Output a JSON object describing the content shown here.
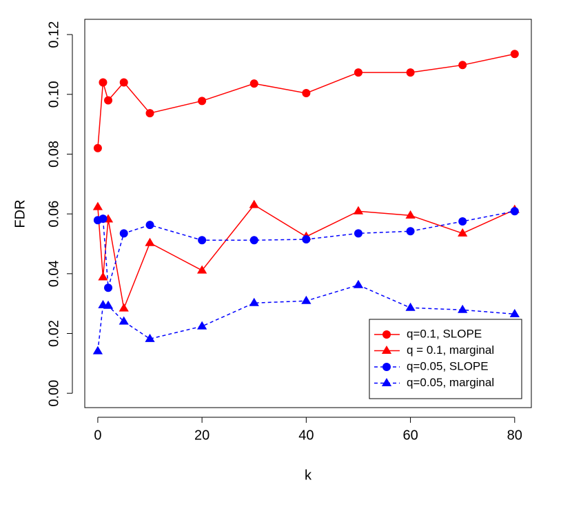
{
  "chart_data": {
    "type": "line",
    "x_label": "k",
    "y_label": "FDR",
    "x": [
      0,
      1,
      2,
      5,
      10,
      20,
      30,
      40,
      50,
      60,
      70,
      80
    ],
    "series": [
      {
        "name": "q=0.1, SLOPE",
        "color": "#ff0000",
        "marker": "circle",
        "dashed": false,
        "values": [
          0.082,
          0.104,
          0.098,
          0.104,
          0.0937,
          0.0978,
          0.1036,
          0.1004,
          0.1073,
          0.1073,
          0.1098,
          0.1135
        ]
      },
      {
        "name": "q = 0.1, marginal",
        "color": "#ff0000",
        "marker": "triangle",
        "dashed": false,
        "values": [
          0.0623,
          0.0388,
          0.0582,
          0.0284,
          0.0503,
          0.0411,
          0.063,
          0.0524,
          0.0609,
          0.0595,
          0.0535,
          0.0614
        ]
      },
      {
        "name": "q=0.05, SLOPE",
        "color": "#0000ff",
        "marker": "circle",
        "dashed": true,
        "values": [
          0.0579,
          0.0584,
          0.0353,
          0.0535,
          0.0563,
          0.0512,
          0.0512,
          0.0515,
          0.0535,
          0.0542,
          0.0575,
          0.0609
        ]
      },
      {
        "name": "q=0.05, marginal",
        "color": "#0000ff",
        "marker": "triangle",
        "dashed": true,
        "values": [
          0.0141,
          0.0295,
          0.0293,
          0.024,
          0.0182,
          0.0224,
          0.0302,
          0.0309,
          0.0362,
          0.0286,
          0.0279,
          0.0265
        ]
      }
    ],
    "xlim": [
      -2.5,
      83.2
    ],
    "xticks": [
      0,
      20,
      40,
      60,
      80
    ],
    "ylim": [
      -0.0048,
      0.1251
    ],
    "yticks": [
      {
        "value": 0,
        "label": "0.00"
      },
      {
        "value": 0.02,
        "label": "0.02"
      },
      {
        "value": 0.04,
        "label": "0.04"
      },
      {
        "value": 0.06,
        "label": "0.06"
      },
      {
        "value": 0.08,
        "label": "0.08"
      },
      {
        "value": 0.1,
        "label": "0.10"
      },
      {
        "value": 0.12,
        "label": "0.12"
      }
    ],
    "legend": "bottom-right"
  }
}
